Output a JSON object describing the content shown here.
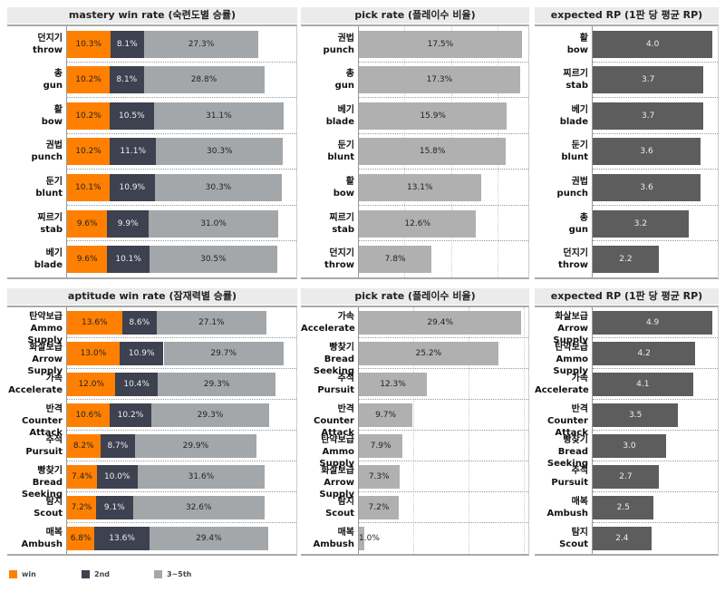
{
  "colors": {
    "win": "#ff8000",
    "second": "#3d4150",
    "third": "#a4a7aa",
    "pick": "#b0b0b0",
    "rp": "#5d5d5d"
  },
  "legend": [
    {
      "label": "win",
      "color": "#ff8000"
    },
    {
      "label": "2nd",
      "color": "#3d4150"
    },
    {
      "label": "3~5th",
      "color": "#a4a7aa"
    }
  ],
  "chart_data": [
    {
      "type": "bar",
      "stacked": true,
      "orientation": "horizontal",
      "title": "mastery win rate (숙련도별 승률)",
      "categories_ko": [
        "던지기",
        "총",
        "활",
        "권법",
        "둔기",
        "찌르기",
        "베기"
      ],
      "categories": [
        "throw",
        "gun",
        "bow",
        "punch",
        "blunt",
        "stab",
        "blade"
      ],
      "series": [
        {
          "name": "win",
          "values": [
            10.3,
            10.2,
            10.2,
            10.2,
            10.1,
            9.6,
            9.6
          ]
        },
        {
          "name": "2nd",
          "values": [
            8.1,
            8.1,
            10.5,
            11.1,
            10.9,
            9.9,
            10.1
          ]
        },
        {
          "name": "3~5th",
          "values": [
            27.3,
            28.8,
            31.1,
            30.3,
            30.3,
            31.0,
            30.5
          ]
        }
      ],
      "unit": "%",
      "xlim": [
        0,
        55
      ]
    },
    {
      "type": "bar",
      "orientation": "horizontal",
      "title": "pick rate (플레이수 비율)",
      "categories_ko": [
        "권법",
        "총",
        "베기",
        "둔기",
        "활",
        "찌르기",
        "던지기"
      ],
      "categories": [
        "punch",
        "gun",
        "blade",
        "blunt",
        "bow",
        "stab",
        "throw"
      ],
      "values": [
        17.5,
        17.3,
        15.9,
        15.8,
        13.1,
        12.6,
        7.8
      ],
      "unit": "%",
      "xlim": [
        0,
        18.3
      ],
      "grid": [
        5,
        10,
        15
      ]
    },
    {
      "type": "bar",
      "orientation": "horizontal",
      "title": "expected RP (1판 당 평균 RP)",
      "categories_ko": [
        "활",
        "찌르기",
        "베기",
        "둔기",
        "권법",
        "총",
        "던지기"
      ],
      "categories": [
        "bow",
        "stab",
        "blade",
        "blunt",
        "punch",
        "gun",
        "throw"
      ],
      "values": [
        4.0,
        3.7,
        3.7,
        3.6,
        3.6,
        3.2,
        2.2
      ],
      "unit": "",
      "xlim": [
        0,
        4.2
      ]
    },
    {
      "type": "bar",
      "stacked": true,
      "orientation": "horizontal",
      "title": "aptitude win rate (잠재력별 승률)",
      "categories_ko": [
        "탄약보급",
        "화살보급",
        "가속",
        "반격",
        "추적",
        "빵찾기",
        "탐지",
        "매복"
      ],
      "categories": [
        "Ammo Supply",
        "Arrow Supply",
        "Accelerate",
        "Counter Attack",
        "Pursuit",
        "Bread Seeking",
        "Scout",
        "Ambush"
      ],
      "series": [
        {
          "name": "win",
          "values": [
            13.6,
            13.0,
            12.0,
            10.6,
            8.2,
            7.4,
            7.2,
            6.8
          ]
        },
        {
          "name": "2nd",
          "values": [
            8.6,
            10.9,
            10.4,
            10.2,
            8.7,
            10.0,
            9.1,
            13.6
          ]
        },
        {
          "name": "3~5th",
          "values": [
            27.1,
            29.7,
            29.3,
            29.3,
            29.9,
            31.6,
            32.6,
            29.4
          ]
        }
      ],
      "unit": "%",
      "xlim": [
        0,
        57
      ]
    },
    {
      "type": "bar",
      "orientation": "horizontal",
      "title": "pick rate (플레이수 비율)",
      "categories_ko": [
        "가속",
        "빵찾기",
        "추적",
        "반격",
        "탄약보급",
        "화살보급",
        "탐지",
        "매복"
      ],
      "categories": [
        "Accelerate",
        "Bread Seeking",
        "Pursuit",
        "Counter Attack",
        "Ammo Supply",
        "Arrow Supply",
        "Scout",
        "Ambush"
      ],
      "values": [
        29.4,
        25.2,
        12.3,
        9.7,
        7.9,
        7.3,
        7.2,
        1.0
      ],
      "unit": "%",
      "xlim": [
        0,
        30.8
      ],
      "grid": [
        10,
        20,
        30
      ]
    },
    {
      "type": "bar",
      "orientation": "horizontal",
      "title": "expected RP (1판 당 평균 RP)",
      "categories_ko": [
        "화살보급",
        "탄약보급",
        "가속",
        "반격",
        "빵찾기",
        "추적",
        "매복",
        "탐지"
      ],
      "categories": [
        "Arrow Supply",
        "Ammo Supply",
        "Accelerate",
        "Counter Attack",
        "Bread Seeking",
        "Pursuit",
        "Ambush",
        "Scout"
      ],
      "values": [
        4.9,
        4.2,
        4.1,
        3.5,
        3.0,
        2.7,
        2.5,
        2.4
      ],
      "unit": "",
      "xlim": [
        0,
        5.15
      ]
    }
  ]
}
